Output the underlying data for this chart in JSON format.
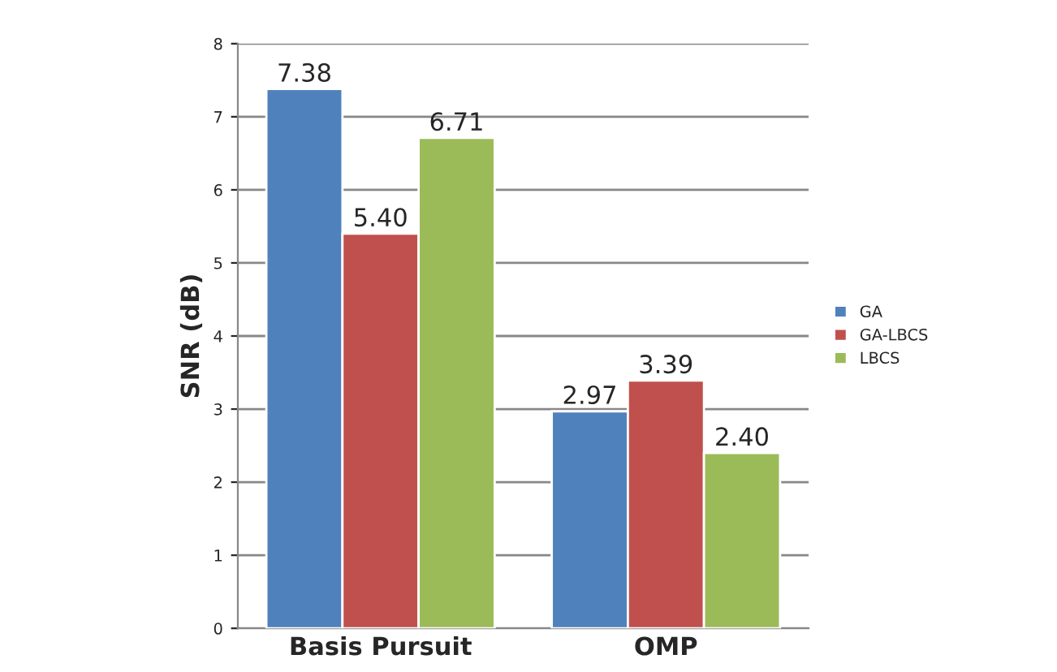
{
  "chart_data": {
    "type": "bar",
    "ylabel": "SNR (dB)",
    "categories": [
      "Basis Pursuit",
      "OMP"
    ],
    "series": [
      {
        "name": "GA",
        "color": "#4f81bd",
        "values": [
          7.38,
          2.97
        ]
      },
      {
        "name": "GA-LBCS",
        "color": "#c0504d",
        "values": [
          5.4,
          3.39
        ]
      },
      {
        "name": "LBCS",
        "color": "#9bbb59",
        "values": [
          6.71,
          2.4
        ]
      }
    ],
    "value_labels": [
      [
        "7.38",
        "2.97"
      ],
      [
        "5.40",
        "3.39"
      ],
      [
        "6.71",
        "2.40"
      ]
    ],
    "ylim": [
      0,
      8
    ],
    "yticks": [
      0,
      1,
      2,
      3,
      4,
      5,
      6,
      7,
      8
    ],
    "grid": "y",
    "legend": "right"
  }
}
